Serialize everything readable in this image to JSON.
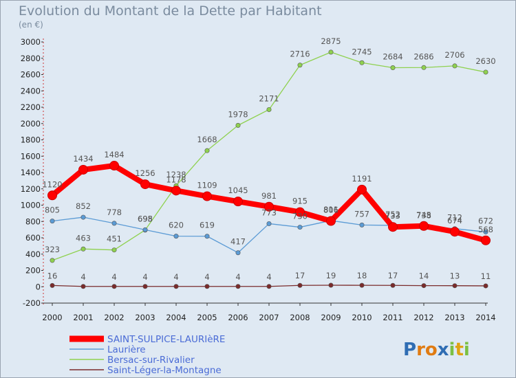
{
  "title": "Evolution du Montant de la Dette par Habitant",
  "subtitle": "(en €)",
  "logo": {
    "text": "Proxiti",
    "letters": [
      {
        "ch": "P",
        "color": "#2f6db3"
      },
      {
        "ch": "r",
        "color": "#e07b12"
      },
      {
        "ch": "o",
        "color": "#e07b12"
      },
      {
        "ch": "x",
        "color": "#2f6db3"
      },
      {
        "ch": "i",
        "color": "#7cc043"
      },
      {
        "ch": "t",
        "color": "#e0a312"
      },
      {
        "ch": "i",
        "color": "#7cc043"
      }
    ]
  },
  "chart_data": {
    "type": "line",
    "title": "Evolution du Montant de la Dette par Habitant",
    "subtitle": "(en €)",
    "x": [
      "2000",
      "2001",
      "2002",
      "2003",
      "2004",
      "2005",
      "2006",
      "2007",
      "2008",
      "2009",
      "2010",
      "2011",
      "2012",
      "2013",
      "2014"
    ],
    "ylim": [
      -200,
      3000
    ],
    "yticks": [
      -200,
      0,
      200,
      400,
      600,
      800,
      1000,
      1200,
      1400,
      1600,
      1800,
      2000,
      2200,
      2400,
      2600,
      2800,
      3000
    ],
    "grid": false,
    "legend_position": "bottom-left",
    "series": [
      {
        "name": "SAINT-SULPICE-LAURIèRE",
        "color": "#ff0000",
        "values": [
          1120,
          1434,
          1484,
          1256,
          1178,
          1109,
          1045,
          981,
          915,
          806,
          1191,
          733,
          745,
          674,
          568
        ],
        "labels": [
          "1120",
          "1434",
          "1484",
          "1256",
          "1178",
          "1109",
          "1045",
          "981",
          "915",
          "806",
          "1191",
          "733",
          "745",
          "674",
          "568"
        ]
      },
      {
        "name": "Laurière",
        "color": "#5b9bd5",
        "values": [
          805,
          852,
          778,
          698,
          620,
          619,
          417,
          773,
          730,
          811,
          757,
          752,
          738,
          712,
          672
        ],
        "labels": [
          "805",
          "852",
          "778",
          "698",
          "620",
          "619",
          "417",
          "773",
          "730",
          "811",
          "757",
          "752",
          "738",
          "712",
          "672"
        ]
      },
      {
        "name": "Bersac-sur-Rivalier",
        "color": "#8fd14f",
        "values": [
          323,
          463,
          451,
          695,
          1238,
          1668,
          1978,
          2171,
          2716,
          2875,
          2745,
          2684,
          2686,
          2706,
          2630
        ],
        "labels": [
          "323",
          "463",
          "451",
          "695",
          "1238",
          "1668",
          "1978",
          "2171",
          "2716",
          "2875",
          "2745",
          "2684",
          "2686",
          "2706",
          "2630"
        ]
      },
      {
        "name": "Saint-Léger-la-Montagne",
        "color": "#7a2b2b",
        "values": [
          16,
          4,
          4,
          4,
          4,
          4,
          4,
          4,
          17,
          19,
          18,
          17,
          14,
          13,
          11
        ],
        "labels": [
          "16",
          "4",
          "4",
          "4",
          "4",
          "4",
          "4",
          "4",
          "17",
          "19",
          "18",
          "17",
          "14",
          "13",
          "11"
        ]
      }
    ]
  }
}
